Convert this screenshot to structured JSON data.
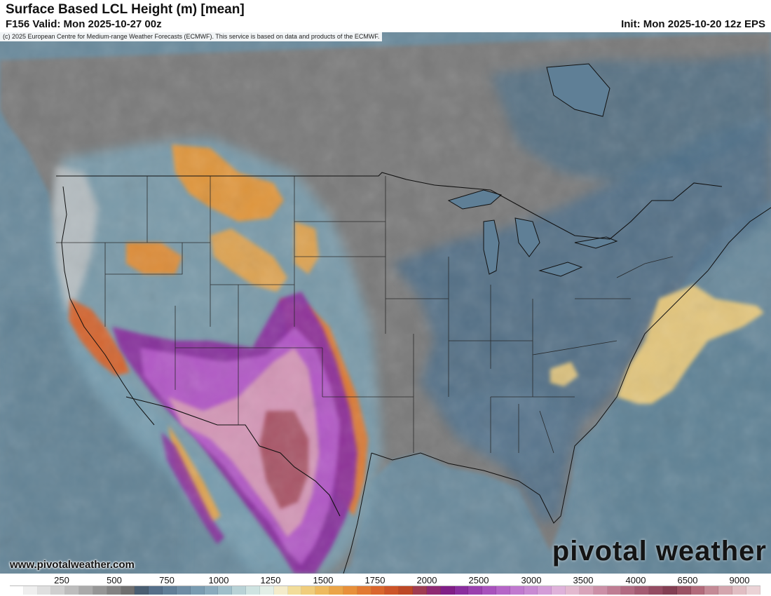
{
  "header": {
    "title": "Surface Based LCL Height (m) [mean]",
    "valid": "F156 Valid: Mon 2025-10-27 00z",
    "init": "Init: Mon 2025-10-20 12z EPS"
  },
  "map": {
    "copyright": "(c) 2025 European Centre for Medium-range Weather Forecasts (ECMWF). This service is based on data and products of the ECMWF.",
    "website": "www.pivotalweather.com",
    "logo": "pivotal weather",
    "colors": {
      "ocean": "#6e8fa0",
      "land_low": "#7c7c7c",
      "land_blue": "#4f6f88",
      "yellow": "#e8c77a",
      "orange": "#e2872f",
      "red_orange": "#d65a2a",
      "purple": "#8a2e9e",
      "magenta": "#b45ac8",
      "pink": "#d69ab4",
      "maroon": "#a4505e"
    }
  },
  "colorbar": {
    "labels": [
      "250",
      "500",
      "750",
      "1000",
      "1250",
      "1500",
      "1750",
      "2000",
      "2500",
      "3000",
      "3500",
      "4000",
      "6500",
      "9000"
    ],
    "colors": [
      "#ffffff",
      "#efefef",
      "#dfdfdf",
      "#cfcfcf",
      "#bdbdbd",
      "#aaaaaa",
      "#969696",
      "#838383",
      "#6f6f6f",
      "#4a5e72",
      "#56708a",
      "#617f98",
      "#6e8da5",
      "#7a9cb1",
      "#8aabbd",
      "#9fbfca",
      "#b8d2d6",
      "#cee3e1",
      "#e3efe7",
      "#f4eccb",
      "#f2dd9a",
      "#f0cd7c",
      "#eeba5e",
      "#eba548",
      "#e8903a",
      "#e27a33",
      "#da662d",
      "#cd5428",
      "#bd4826",
      "#a03c52",
      "#8f2a72",
      "#801e86",
      "#8a2e9e",
      "#9a40ae",
      "#a852bc",
      "#b565c7",
      "#c079cf",
      "#c98ad3",
      "#d49dd8",
      "#dfb2da",
      "#e3b9cf",
      "#d9a4ba",
      "#cc8fa6",
      "#bf7d93",
      "#b26b82",
      "#a45b72",
      "#944c62",
      "#833f53",
      "#9b5264",
      "#b26b7b",
      "#c48a96",
      "#d4a6ae",
      "#e1bec3",
      "#ebd3d6"
    ]
  }
}
